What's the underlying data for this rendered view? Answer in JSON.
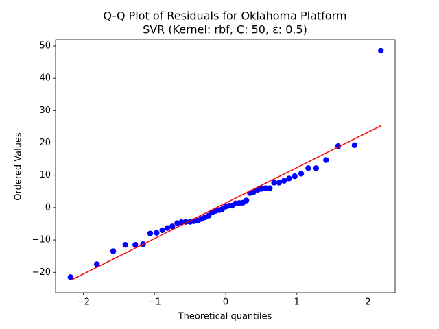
{
  "chart_data": {
    "type": "scatter",
    "title": "Q-Q Plot of Residuals for Oklahoma Platform",
    "subtitle": "SVR (Kernel: rbf, C: 50, ε: 0.5)",
    "x_label": "Theoretical quantiles",
    "y_label": "Ordered Values",
    "x": [
      -2.18,
      -1.81,
      -1.58,
      -1.41,
      -1.27,
      -1.16,
      -1.06,
      -0.97,
      -0.89,
      -0.82,
      -0.75,
      -0.68,
      -0.62,
      -0.56,
      -0.5,
      -0.45,
      -0.39,
      -0.34,
      -0.29,
      -0.24,
      -0.19,
      -0.14,
      -0.09,
      -0.05,
      0,
      0.05,
      0.09,
      0.14,
      0.19,
      0.24,
      0.29,
      0.34,
      0.39,
      0.45,
      0.5,
      0.56,
      0.62,
      0.68,
      0.75,
      0.82,
      0.89,
      0.97,
      1.06,
      1.16,
      1.27,
      1.41,
      1.58,
      1.81,
      2.18
    ],
    "values": [
      -21.5,
      -17.5,
      -13.5,
      -11.5,
      -11.5,
      -11.3,
      -8,
      -7.8,
      -7,
      -6.3,
      -5.8,
      -4.8,
      -4.5,
      -4.4,
      -4.4,
      -4.2,
      -4,
      -3.5,
      -3,
      -2.5,
      -1.5,
      -1,
      -0.8,
      -0.5,
      0.3,
      0.6,
      0.6,
      1.3,
      1.4,
      1.5,
      2.2,
      4.5,
      4.8,
      5.5,
      5.8,
      6,
      6,
      7.7,
      7.7,
      8.3,
      9,
      9.7,
      10.5,
      12.2,
      12.2,
      14.7,
      19,
      19.3,
      48.5
    ],
    "color": "#0000ff",
    "fit_line": {
      "x": [
        -2.18,
        2.18
      ],
      "values": [
        -22.5,
        25.3
      ],
      "color": "#ff0000"
    },
    "xlim": [
      -2.39,
      2.38
    ],
    "ylim": [
      -26.3,
      51.9
    ],
    "xticks": [
      {
        "value": -2,
        "label": "−2"
      },
      {
        "value": -1,
        "label": "−1"
      },
      0,
      1,
      2
    ],
    "yticks": [
      {
        "value": -20,
        "label": "−20"
      },
      {
        "value": -10,
        "label": "−10"
      },
      0,
      10,
      20,
      30,
      40,
      50
    ]
  }
}
